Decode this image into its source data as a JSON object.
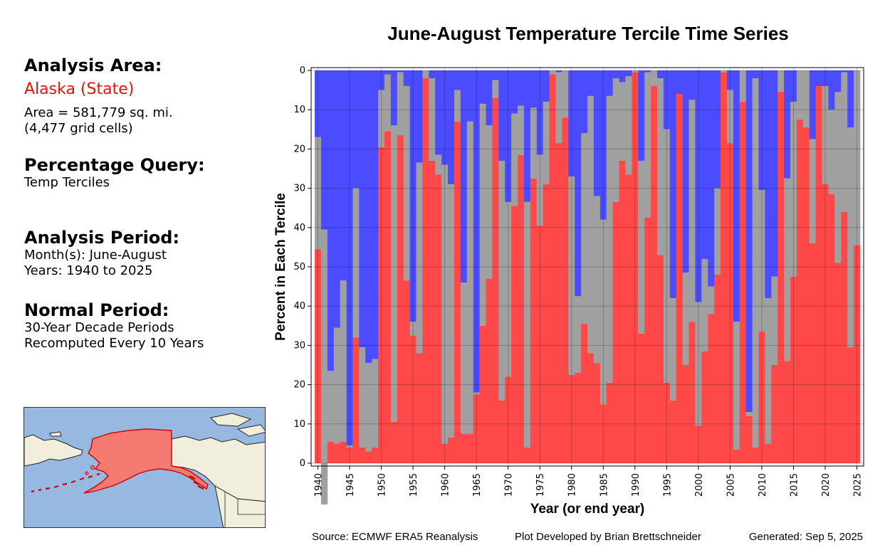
{
  "sidebar": {
    "area_header": "Analysis Area:",
    "area_name": "Alaska (State)",
    "area_size": "Area = 581,779 sq. mi.",
    "grid_cells": "(4,477 grid cells)",
    "query_header": "Percentage Query:",
    "query_value": "Temp Terciles",
    "period_header": "Analysis Period:",
    "months": "Month(s): June-August",
    "years": "Years: 1940 to 2025",
    "normal_header": "Normal Period:",
    "normal_line1": "30-Year Decade Periods",
    "normal_line2": "Recomputed Every 10 Years"
  },
  "map": {
    "ocean_color": "#97b8e0",
    "land_color": "#f1efdc",
    "highlight_color": "#f47a72",
    "highlight_border": "#cc0000"
  },
  "footer": {
    "source": "Source: ECMWF ERA5 Reanalysis",
    "developer": "Plot Developed by Brian Brettschneider",
    "generated": "Generated: Sep 5, 2025"
  },
  "chart_data": {
    "type": "bar",
    "stacked": true,
    "title": "June-August Temperature Tercile Time Series",
    "xlabel": "Year (or end year)",
    "ylabel": "Percent in Each Tercile",
    "x": [
      1940,
      1941,
      1942,
      1943,
      1944,
      1945,
      1946,
      1947,
      1948,
      1949,
      1950,
      1951,
      1952,
      1953,
      1954,
      1955,
      1956,
      1957,
      1958,
      1959,
      1960,
      1961,
      1962,
      1963,
      1964,
      1965,
      1966,
      1967,
      1968,
      1969,
      1970,
      1971,
      1972,
      1973,
      1974,
      1975,
      1976,
      1977,
      1978,
      1979,
      1980,
      1981,
      1982,
      1983,
      1984,
      1985,
      1986,
      1987,
      1988,
      1989,
      1990,
      1991,
      1992,
      1993,
      1994,
      1995,
      1996,
      1997,
      1998,
      1999,
      2000,
      2001,
      2002,
      2003,
      2004,
      2005,
      2006,
      2007,
      2008,
      2009,
      2010,
      2011,
      2012,
      2013,
      2014,
      2015,
      2016,
      2017,
      2018,
      2019,
      2020,
      2021,
      2022,
      2023,
      2024,
      2025
    ],
    "x_ticks": [
      1940,
      1945,
      1950,
      1955,
      1960,
      1965,
      1970,
      1975,
      1980,
      1985,
      1990,
      1995,
      2000,
      2005,
      2010,
      2015,
      2020,
      2025
    ],
    "y_ticks": [
      0,
      10,
      20,
      30,
      40,
      50,
      40,
      30,
      20,
      10,
      0
    ],
    "ylim": [
      0,
      100
    ],
    "grid": true,
    "series": [
      {
        "color": "#4b4bff",
        "values": [
          17,
          40.5,
          76.5,
          65.5,
          53.5,
          95.5,
          30,
          70.5,
          74.5,
          73.5,
          5,
          1,
          14,
          0.5,
          4,
          64,
          23.5,
          0,
          2,
          21.5,
          24,
          29,
          5,
          54,
          13,
          82,
          8.5,
          14,
          2.5,
          23,
          33.5,
          11,
          9,
          33.5,
          9.5,
          21.5,
          8,
          0,
          0.5,
          0,
          27,
          57.5,
          16,
          6.5,
          32,
          38,
          6.5,
          2,
          3,
          1.5,
          0,
          23,
          0.5,
          0,
          2,
          15,
          58,
          6,
          51.5,
          7.5,
          59,
          48,
          55,
          30,
          0,
          5,
          64,
          0,
          87,
          2,
          30.5,
          58,
          52.5,
          0,
          27.5,
          8,
          0,
          0,
          17.5,
          4,
          4,
          10,
          5.5,
          0.5,
          14.5,
          0
        ]
      },
      {
        "color": "#a0a0a0",
        "values": [
          28.5,
          70,
          18,
          29.5,
          41,
          0.5,
          38,
          25.5,
          22.5,
          22.5,
          14.5,
          14.5,
          75.5,
          16,
          49.5,
          3.5,
          48.5,
          2,
          21,
          5,
          71,
          64.5,
          8,
          38.5,
          79.5,
          0.5,
          56.5,
          39,
          4.5,
          61,
          44.5,
          23.5,
          12.5,
          62.5,
          18,
          18,
          21,
          1,
          18,
          12,
          50.5,
          19.5,
          48.5,
          65.5,
          42.5,
          47,
          73,
          31.5,
          20,
          25,
          0.5,
          44,
          37,
          4,
          45,
          64.5,
          26,
          0,
          23.5,
          56.5,
          31.5,
          23.5,
          7,
          22,
          0.5,
          13.5,
          32.5,
          8,
          1,
          94,
          36,
          37,
          22.5,
          5.5,
          46.5,
          44.5,
          12.5,
          14.5,
          26.5,
          0,
          25,
          21.5,
          43.5,
          35.5,
          56,
          44.5
        ]
      },
      {
        "color": "#ff4848",
        "values": [
          54.5,
          0,
          5.5,
          5,
          5.5,
          4,
          32,
          4,
          3,
          4,
          80.5,
          84.5,
          10.5,
          83.5,
          46.5,
          32.5,
          28,
          98,
          77,
          73.5,
          5,
          6.5,
          87,
          7.5,
          7.5,
          17.5,
          35,
          47,
          93,
          16,
          22,
          65.5,
          78.5,
          4,
          72.5,
          60.5,
          71,
          99,
          81.5,
          88,
          22.5,
          23,
          35.5,
          28,
          25.5,
          15,
          20.5,
          66.5,
          77,
          73.5,
          99.5,
          33,
          62.5,
          96,
          53,
          20.5,
          16,
          94,
          25,
          36,
          9.5,
          28.5,
          38,
          48,
          99.5,
          81.5,
          3.5,
          92,
          12,
          4,
          33.5,
          5,
          25,
          94.5,
          26,
          47.5,
          87.5,
          85.5,
          56,
          96,
          71,
          68.5,
          51,
          64,
          29.5,
          55.5
        ]
      }
    ]
  }
}
